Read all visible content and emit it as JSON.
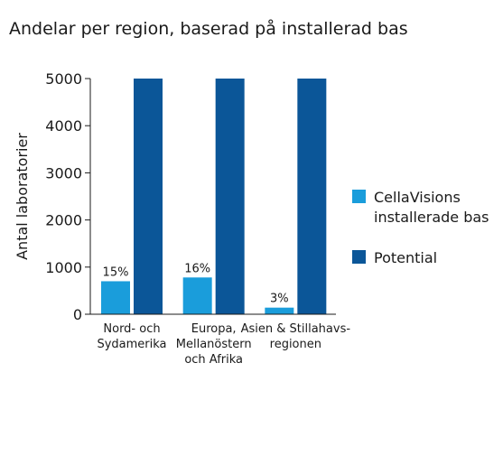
{
  "chart_data": {
    "type": "bar",
    "title": "Andelar per region, baserad på installerad bas",
    "ylabel": "Antal laboratorier",
    "ylim": [
      0,
      5000
    ],
    "yticks": [
      0,
      1000,
      2000,
      3000,
      4000,
      5000
    ],
    "categories": [
      [
        "Nord- och",
        "Sydamerika"
      ],
      [
        "Europa,",
        "Mellanöstern",
        "och Afrika"
      ],
      [
        "Asien & Stillahavs-",
        "regionen"
      ]
    ],
    "series": [
      {
        "name": "CellaVisions installerade bas",
        "legend_lines": [
          "CellaVisions",
          "installerade bas"
        ],
        "color": "#1a9ddb",
        "values": [
          700,
          780,
          140
        ],
        "data_labels": [
          "15%",
          "16%",
          "3%"
        ]
      },
      {
        "name": "Potential",
        "legend_lines": [
          "Potential"
        ],
        "color": "#0b5698",
        "values": [
          5000,
          5000,
          5000
        ]
      }
    ]
  }
}
